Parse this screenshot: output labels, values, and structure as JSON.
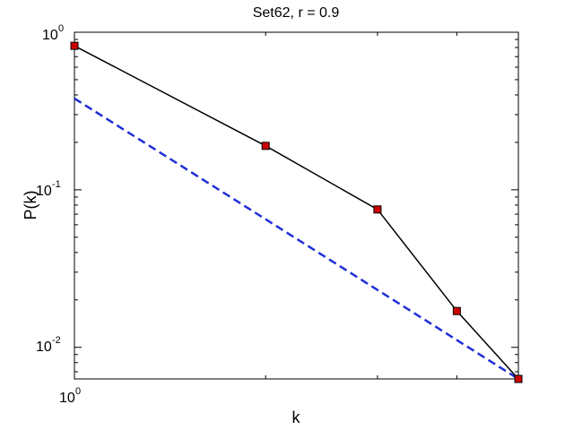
{
  "chart_data": {
    "type": "line",
    "title": "Set62, r = 0.9",
    "xlabel": "k",
    "ylabel": "P(k)",
    "x_scale": "log",
    "y_scale": "log",
    "xlim": [
      1,
      5
    ],
    "ylim": [
      0.0063,
      1
    ],
    "x_ticks": [
      {
        "base": "10",
        "exp": "0"
      }
    ],
    "y_ticks": [
      {
        "value": 1,
        "base": "10",
        "exp": "0"
      },
      {
        "value": 0.1,
        "base": "10",
        "exp": "-1"
      },
      {
        "value": 0.01,
        "base": "10",
        "exp": "-2"
      }
    ],
    "grid": false,
    "series": [
      {
        "style": "solid-with-square-markers",
        "color": "#000000",
        "marker_color": "#cc0000",
        "x": [
          1,
          2,
          3,
          4,
          5
        ],
        "y": [
          0.82,
          0.19,
          0.075,
          0.017,
          0.0063
        ]
      },
      {
        "style": "dashed-fit",
        "color": "#1f2fd6",
        "x": [
          1,
          5
        ],
        "y": [
          0.38,
          0.0063
        ]
      }
    ]
  }
}
